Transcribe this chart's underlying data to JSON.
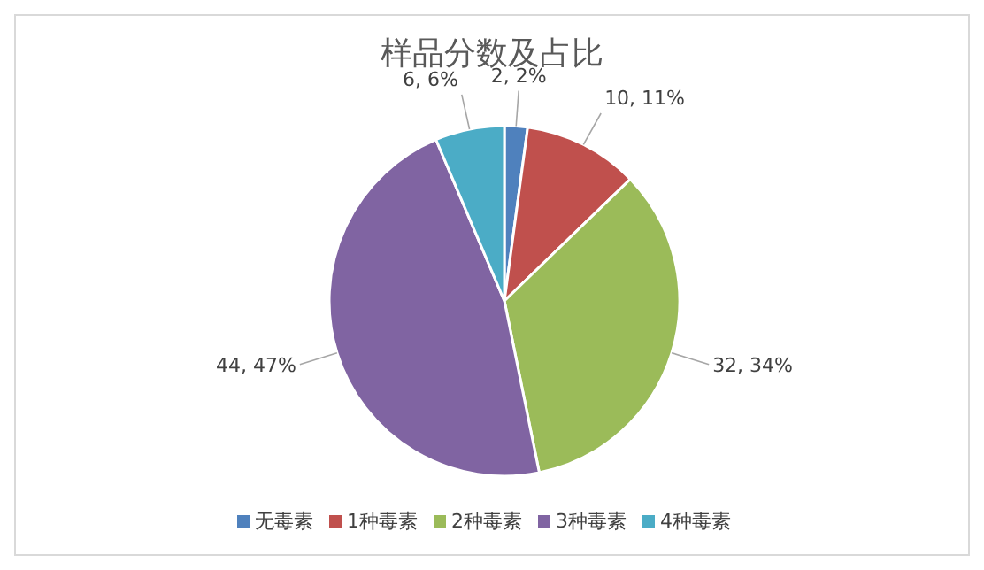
{
  "chart_data": {
    "type": "pie",
    "title": "样品分数及占比",
    "categories": [
      "无毒素",
      "1种毒素",
      "2种毒素",
      "3种毒素",
      "4种毒素"
    ],
    "values": [
      2,
      10,
      32,
      44,
      6
    ],
    "colors": [
      "#4f81bd",
      "#c0504d",
      "#9bbb59",
      "#8064a2",
      "#4bacc6"
    ],
    "value_labels": [
      "2, 2%",
      "10, 11%",
      "32, 34%",
      "44, 47%",
      "6, 6%"
    ],
    "legend": "bottom"
  }
}
